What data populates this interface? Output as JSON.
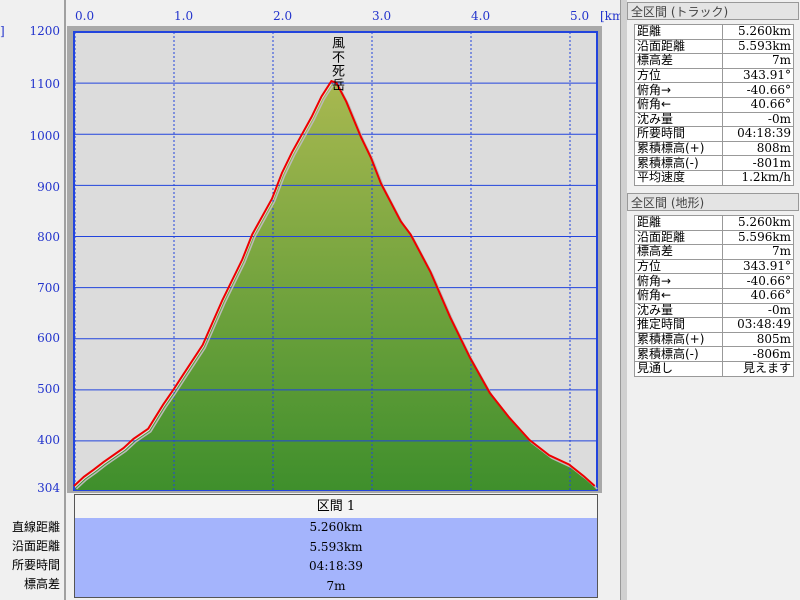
{
  "axis": {
    "y_unit_fragment": "]",
    "x_unit": "[km]",
    "y_ticks": [
      "1200",
      "1100",
      "1000",
      "900",
      "800",
      "700",
      "600",
      "500",
      "400",
      "304"
    ],
    "x_ticks": [
      "0.0",
      "1.0",
      "2.0",
      "3.0",
      "4.0",
      "5.0"
    ]
  },
  "chart_data": {
    "type": "area",
    "x_unit": "km",
    "y_unit": "m",
    "xlim": [
      0,
      5.26
    ],
    "ylim": [
      304,
      1200
    ],
    "peak_label": "風不死岳",
    "x": [
      0,
      0.1,
      0.2,
      0.3,
      0.5,
      0.6,
      0.75,
      0.9,
      1.0,
      1.1,
      1.3,
      1.5,
      1.7,
      1.8,
      2.0,
      2.1,
      2.2,
      2.4,
      2.5,
      2.6,
      2.65,
      2.75,
      2.9,
      3.0,
      3.1,
      3.3,
      3.4,
      3.6,
      3.8,
      4.0,
      4.2,
      4.4,
      4.6,
      4.8,
      5.0,
      5.15,
      5.26
    ],
    "y": [
      308,
      326,
      340,
      355,
      382,
      400,
      420,
      467,
      495,
      525,
      584,
      672,
      751,
      800,
      870,
      920,
      960,
      1030,
      1070,
      1100,
      1097,
      1060,
      990,
      950,
      900,
      826,
      800,
      727,
      638,
      559,
      490,
      441,
      398,
      368,
      350,
      327,
      308
    ],
    "colors": {
      "track": "#ee0000",
      "terrain_line": "#bbbbbb",
      "fill_top": "#a8b850",
      "fill_bottom": "#3f8f2c",
      "grid": "#2244dd",
      "plot_bg": "#dcdcdc"
    }
  },
  "segment": {
    "header": "区間 1",
    "labels": [
      "直線距離",
      "沿面距離",
      "所要時間",
      "標高差"
    ],
    "values": [
      "5.260km",
      "5.593km",
      "04:18:39",
      "7m"
    ]
  },
  "track_panel": {
    "title": "全区間 (トラック)",
    "rows": [
      [
        "距離",
        "5.260km"
      ],
      [
        "沿面距離",
        "5.593km"
      ],
      [
        "標高差",
        "7m"
      ],
      [
        "方位",
        "343.91°"
      ],
      [
        "俯角→",
        "-40.66°"
      ],
      [
        "俯角←",
        "40.66°"
      ],
      [
        "沈み量",
        "-0m"
      ],
      [
        "所要時間",
        "04:18:39"
      ],
      [
        "累積標高(+)",
        "808m"
      ],
      [
        "累積標高(-)",
        "-801m"
      ],
      [
        "平均速度",
        "1.2km/h"
      ]
    ]
  },
  "terrain_panel": {
    "title": "全区間 (地形)",
    "rows": [
      [
        "距離",
        "5.260km"
      ],
      [
        "沿面距離",
        "5.596km"
      ],
      [
        "標高差",
        "7m"
      ],
      [
        "方位",
        "343.91°"
      ],
      [
        "俯角→",
        "-40.66°"
      ],
      [
        "俯角←",
        "40.66°"
      ],
      [
        "沈み量",
        "-0m"
      ],
      [
        "推定時間",
        "03:48:49"
      ],
      [
        "累積標高(+)",
        "805m"
      ],
      [
        "累積標高(-)",
        "-806m"
      ],
      [
        "見通し",
        "見えます"
      ]
    ]
  }
}
